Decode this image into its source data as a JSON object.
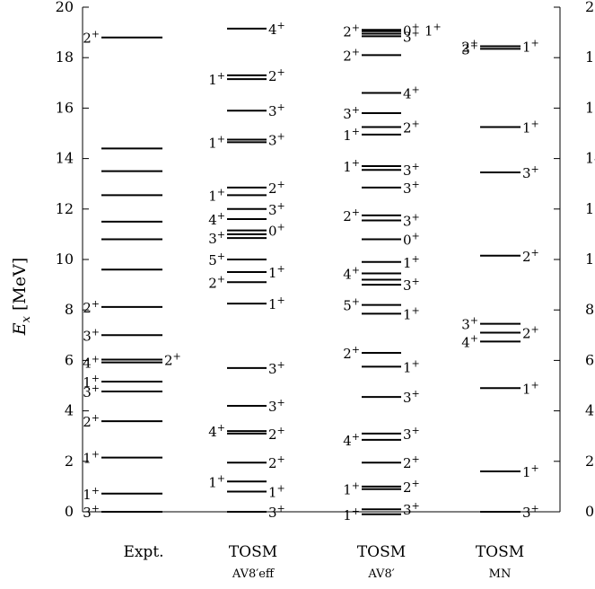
{
  "chart_data": {
    "type": "level-scheme",
    "ylabel": "E",
    "ylabel_sub": "x",
    "ylabel_unit": "[MeV]",
    "ylim": [
      0,
      20
    ],
    "yticks": [
      0,
      2,
      4,
      6,
      8,
      10,
      12,
      14,
      16,
      18,
      20
    ],
    "ytick_labels": [
      "0",
      "2",
      "4",
      "6",
      "8",
      "10",
      "12",
      "14",
      "16",
      "18",
      "20"
    ],
    "columns": [
      {
        "title": "Expt.",
        "subtitle": "",
        "levels": [
          {
            "e": 0.0,
            "left": "3+"
          },
          {
            "e": 0.72,
            "left": "1+"
          },
          {
            "e": 2.15,
            "left": "1+"
          },
          {
            "e": 3.59,
            "left": "2+"
          },
          {
            "e": 4.77,
            "left": "3+"
          },
          {
            "e": 5.16,
            "left": "1+"
          },
          {
            "e": 5.92,
            "left": "4+"
          },
          {
            "e": 6.03,
            "right": "2+"
          },
          {
            "e": 7.0,
            "left": "3+"
          },
          {
            "e": 8.12,
            "left": "2+"
          },
          {
            "e": 9.6
          },
          {
            "e": 10.8
          },
          {
            "e": 11.5
          },
          {
            "e": 12.55
          },
          {
            "e": 13.5
          },
          {
            "e": 14.4
          },
          {
            "e": 18.8,
            "left": "2+"
          }
        ]
      },
      {
        "title": "TOSM",
        "subtitle": "AV8′eff",
        "levels": [
          {
            "e": 0.0,
            "right": "3+"
          },
          {
            "e": 0.8,
            "right": "1+"
          },
          {
            "e": 1.2,
            "left": "1+"
          },
          {
            "e": 1.95,
            "right": "2+"
          },
          {
            "e": 3.1,
            "right": "2+"
          },
          {
            "e": 3.2,
            "left": "4+"
          },
          {
            "e": 4.2,
            "right": "3+"
          },
          {
            "e": 5.7,
            "right": "3+"
          },
          {
            "e": 8.25,
            "right": "1+"
          },
          {
            "e": 9.1,
            "left": "2+"
          },
          {
            "e": 9.5,
            "right": "1+"
          },
          {
            "e": 10.0,
            "left": "5+"
          },
          {
            "e": 10.85,
            "left": "3+"
          },
          {
            "e": 11.0
          },
          {
            "e": 11.15,
            "right": "0+"
          },
          {
            "e": 11.6,
            "left": "4+"
          },
          {
            "e": 12.0,
            "right": "3+"
          },
          {
            "e": 12.55,
            "left": "1+"
          },
          {
            "e": 12.85,
            "right": "2+"
          },
          {
            "e": 14.65,
            "left": "1+"
          },
          {
            "e": 14.75,
            "right": "3+"
          },
          {
            "e": 15.9,
            "right": "3+"
          },
          {
            "e": 17.15,
            "left": "1+"
          },
          {
            "e": 17.3,
            "right": "2+"
          },
          {
            "e": 19.15,
            "right": "4+"
          }
        ]
      },
      {
        "title": "TOSM",
        "subtitle": "AV8′",
        "levels": [
          {
            "e": -0.1,
            "left": "1+"
          },
          {
            "e": 0.1,
            "right": "3+"
          },
          {
            "e": 0.9,
            "left": "1+"
          },
          {
            "e": 1.0,
            "right": "2+"
          },
          {
            "e": 1.95,
            "right": "2+"
          },
          {
            "e": 2.85,
            "left": "4+"
          },
          {
            "e": 3.1,
            "right": "3+"
          },
          {
            "e": 4.55,
            "right": "3+"
          },
          {
            "e": 5.75,
            "right": "1+"
          },
          {
            "e": 6.3,
            "left": "2+"
          },
          {
            "e": 7.85,
            "right": "1+"
          },
          {
            "e": 8.2,
            "left": "5+"
          },
          {
            "e": 9.0,
            "right": "3+"
          },
          {
            "e": 9.2
          },
          {
            "e": 9.45,
            "left": "4+"
          },
          {
            "e": 9.9,
            "right": "1+"
          },
          {
            "e": 10.8,
            "right": "0+"
          },
          {
            "e": 11.55,
            "right": "3+"
          },
          {
            "e": 11.75,
            "left": "2+"
          },
          {
            "e": 12.85,
            "right": "3+"
          },
          {
            "e": 13.55,
            "right": "3+"
          },
          {
            "e": 13.7,
            "left": "1+"
          },
          {
            "e": 14.95,
            "left": "1+"
          },
          {
            "e": 15.25,
            "right": "2+"
          },
          {
            "e": 15.8,
            "left": "3+"
          },
          {
            "e": 16.6,
            "right": "4+"
          },
          {
            "e": 18.1,
            "left": "2+"
          },
          {
            "e": 18.85,
            "right": "3+"
          },
          {
            "e": 18.95
          },
          {
            "e": 19.05,
            "left": "2+"
          },
          {
            "e": 19.1,
            "right": "0+",
            "right2": "1+"
          }
        ]
      },
      {
        "title": "TOSM",
        "subtitle": "MN",
        "levels": [
          {
            "e": 0.0,
            "right": "3+"
          },
          {
            "e": 1.6,
            "right": "1+"
          },
          {
            "e": 4.9,
            "right": "1+"
          },
          {
            "e": 6.75,
            "left": "4+"
          },
          {
            "e": 7.1,
            "right": "2+"
          },
          {
            "e": 7.45,
            "left": "3+"
          },
          {
            "e": 10.15,
            "right": "2+"
          },
          {
            "e": 13.45,
            "right": "3+"
          },
          {
            "e": 15.25,
            "right": "1+"
          },
          {
            "e": 18.35,
            "left": "3+"
          },
          {
            "e": 18.45,
            "right": "1+",
            "left": "2+"
          }
        ]
      }
    ]
  }
}
